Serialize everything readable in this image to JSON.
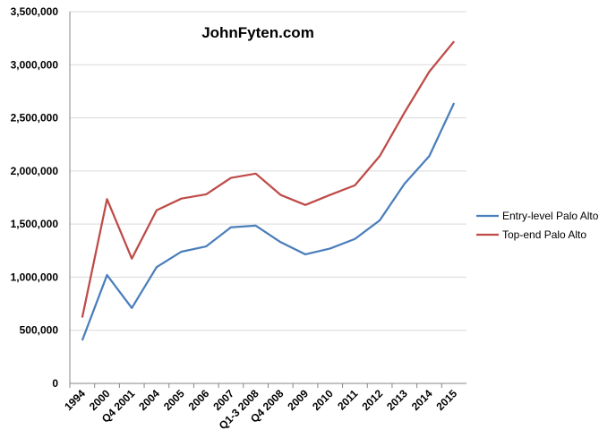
{
  "chart_data": {
    "type": "line",
    "annotation": "JohnFyten.com",
    "categories": [
      "1994",
      "2000",
      "Q4 2001",
      "2004",
      "2005",
      "2006",
      "2007",
      "Q1-3 2008",
      "Q4 2008",
      "2009",
      "2010",
      "2011",
      "2012",
      "2013",
      "2014",
      "2015"
    ],
    "series": [
      {
        "name": "Entry-level Palo Alto",
        "color": "#4a7ebb",
        "values": [
          405000,
          1020000,
          710000,
          1095000,
          1240000,
          1290000,
          1470000,
          1485000,
          1330000,
          1215000,
          1270000,
          1360000,
          1535000,
          1880000,
          2140000,
          2640000
        ]
      },
      {
        "name": "Top-end Palo Alto",
        "color": "#be4b48",
        "values": [
          620000,
          1735000,
          1175000,
          1630000,
          1740000,
          1780000,
          1935000,
          1975000,
          1775000,
          1680000,
          1775000,
          1865000,
          2140000,
          2550000,
          2935000,
          3220000
        ]
      }
    ],
    "ylim": [
      0,
      3500000
    ],
    "yticks": [
      0,
      {
        "value": 500000,
        "label": "500,000"
      },
      {
        "value": 1000000,
        "label": "1,000,000"
      },
      {
        "value": 1500000,
        "label": "1,500,000"
      },
      {
        "value": 2000000,
        "label": "2,000,000"
      },
      {
        "value": 2500000,
        "label": "2,500,000"
      },
      {
        "value": 3000000,
        "label": "3,000,000"
      },
      {
        "value": 3500000,
        "label": "3,500,000"
      }
    ],
    "grid": true,
    "legend": "right"
  }
}
